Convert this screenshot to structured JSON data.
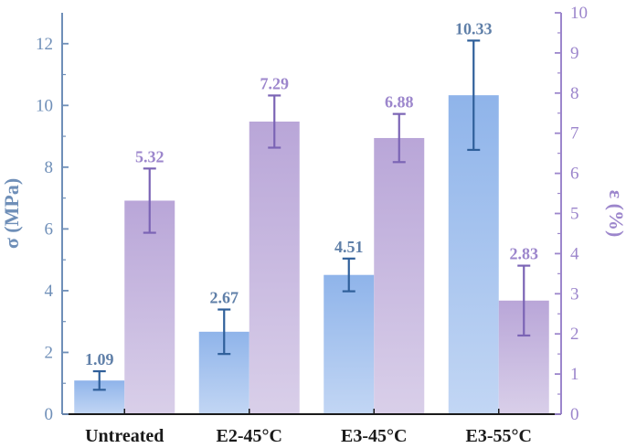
{
  "chart_data": {
    "type": "bar",
    "title": "",
    "categories": [
      "Untreated",
      "E2-45°C",
      "E3-45°C",
      "E3-55°C"
    ],
    "series": [
      {
        "name": "σ (MPa)",
        "axis": "left",
        "values": [
          1.09,
          2.67,
          4.51,
          10.33
        ],
        "errors": [
          0.3,
          0.72,
          0.53,
          1.77
        ],
        "labels": [
          "1.09",
          "2.67",
          "4.51",
          "10.33"
        ],
        "color_top": "#8fb4ea",
        "color_bottom": "#c2d6f4"
      },
      {
        "name": "ε (%)",
        "axis": "right",
        "values": [
          5.32,
          7.29,
          6.88,
          2.83
        ],
        "errors": [
          0.8,
          0.65,
          0.6,
          0.87
        ],
        "labels": [
          "5.32",
          "7.29",
          "6.88",
          "2.83"
        ],
        "color_top": "#b9a6d8",
        "color_bottom": "#d9cfe9"
      }
    ],
    "y_left": {
      "label": "σ (MPa)",
      "range": [
        0,
        13
      ],
      "ticks": [
        0,
        2,
        4,
        6,
        8,
        10,
        12
      ],
      "color": "#6f8fb8",
      "error_color": "#2f5f9a"
    },
    "y_right": {
      "label": "ε (%)",
      "range": [
        0,
        10
      ],
      "ticks": [
        0,
        1,
        2,
        3,
        4,
        5,
        6,
        7,
        8,
        9,
        10
      ],
      "color": "#9c86cc",
      "error_color": "#7b64b5"
    },
    "xlabel": "",
    "grid": false
  }
}
